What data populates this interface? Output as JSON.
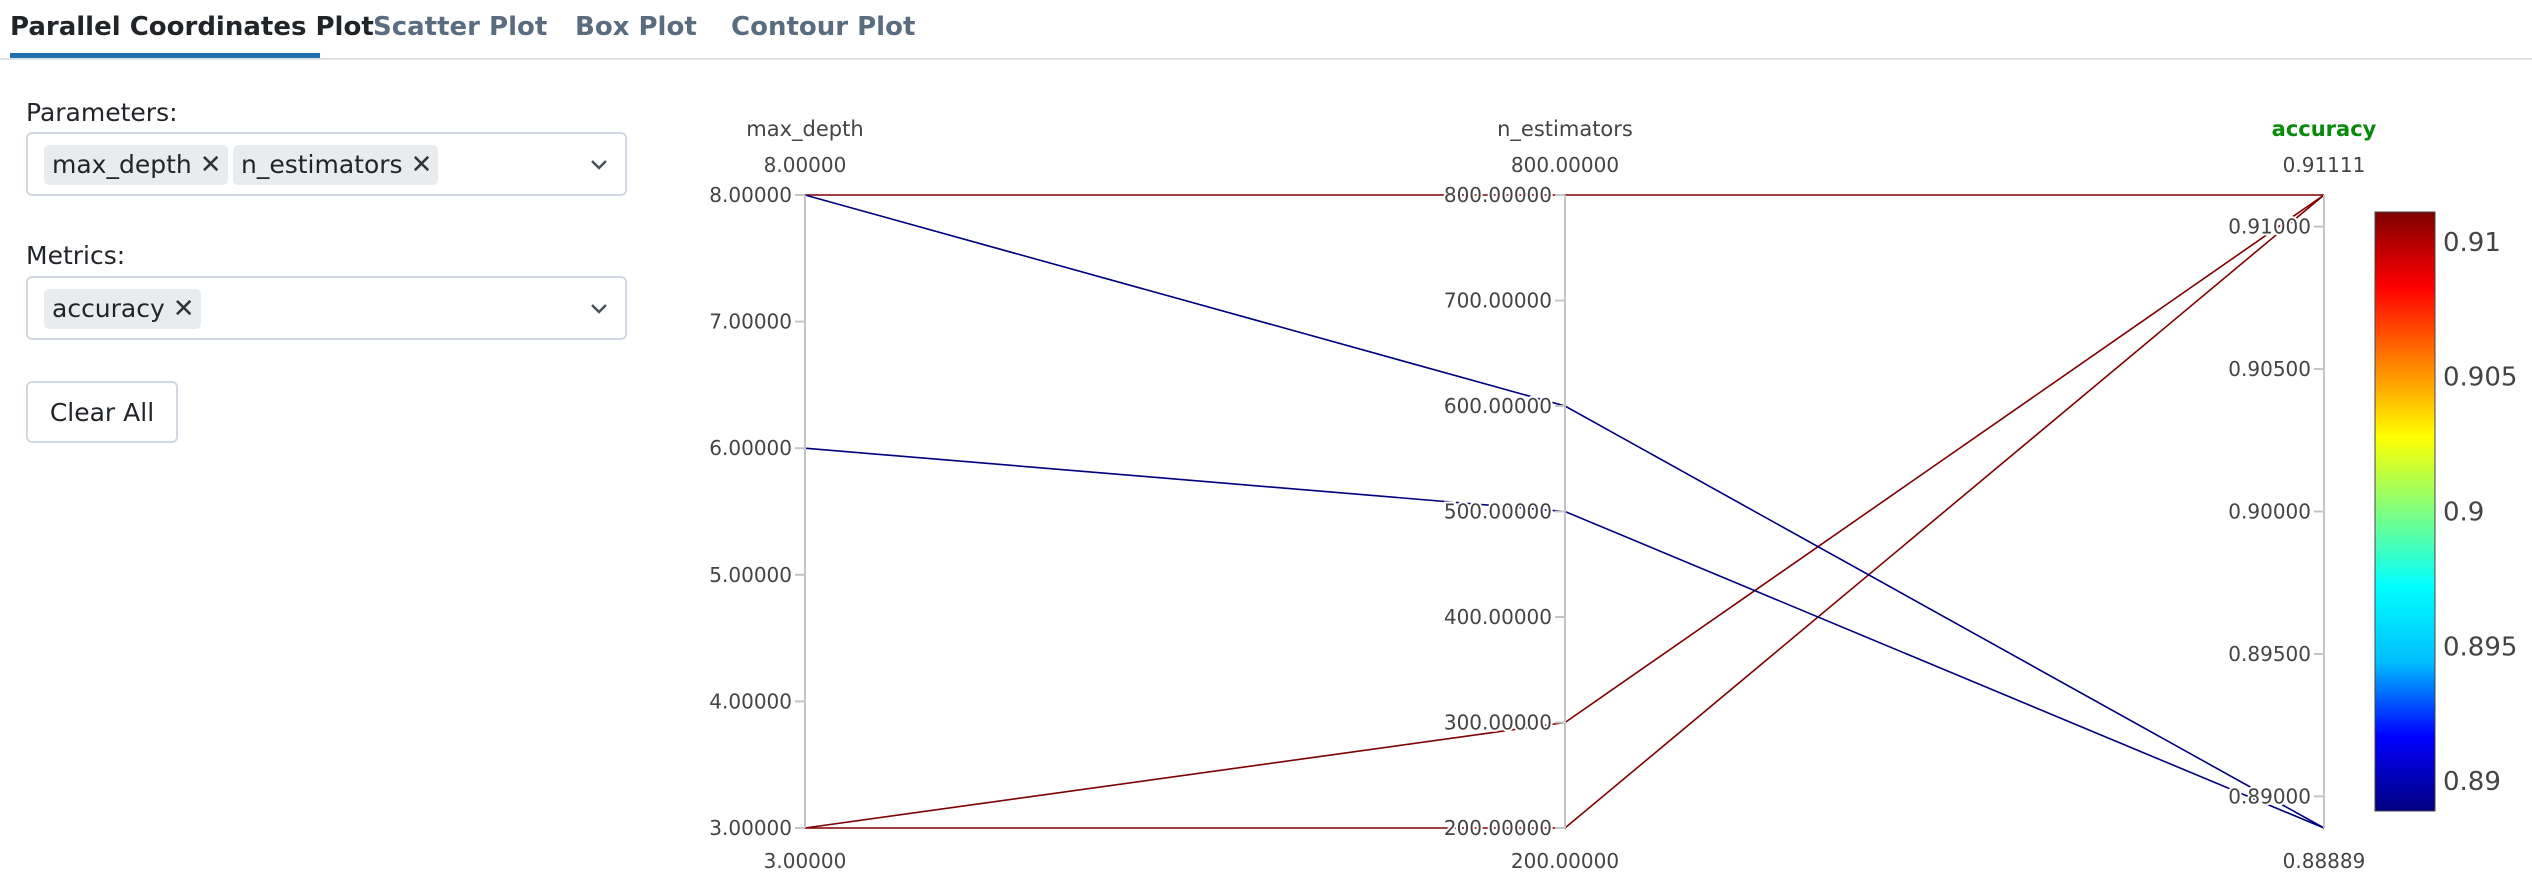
{
  "tabs": [
    {
      "label": "Parallel Coordinates Plot",
      "active": true
    },
    {
      "label": "Scatter Plot",
      "active": false
    },
    {
      "label": "Box Plot",
      "active": false
    },
    {
      "label": "Contour Plot",
      "active": false
    }
  ],
  "controls": {
    "parameters_label": "Parameters:",
    "parameters_chips": [
      "max_depth",
      "n_estimators"
    ],
    "metrics_label": "Metrics:",
    "metrics_chips": [
      "accuracy"
    ],
    "clear_all_label": "Clear All"
  },
  "colors": {
    "accent": "#1f6fb2",
    "highlight_dimension": "#0a8a0a",
    "colorscale": [
      "#00007f",
      "#0000ff",
      "#00bfff",
      "#00ffff",
      "#7fff7f",
      "#ffff00",
      "#ff7f00",
      "#ff0000",
      "#7f0000"
    ]
  },
  "chart_data": {
    "type": "parallel_coordinates",
    "dimensions": [
      {
        "label": "max_depth",
        "range": [
          3,
          8
        ],
        "top_label": "8.00000",
        "bottom_label": "3.00000",
        "ticks": [
          3,
          4,
          5,
          6,
          7,
          8
        ],
        "tick_labels": [
          "3.00000",
          "4.00000",
          "5.00000",
          "6.00000",
          "7.00000",
          "8.00000"
        ],
        "highlighted": false
      },
      {
        "label": "n_estimators",
        "range": [
          200,
          800
        ],
        "top_label": "800.00000",
        "bottom_label": "200.00000",
        "ticks": [
          200,
          300,
          400,
          500,
          600,
          700,
          800
        ],
        "tick_labels": [
          "200.00000",
          "300.00000",
          "400.00000",
          "500.00000",
          "600.00000",
          "700.00000",
          "800.00000"
        ],
        "highlighted": false
      },
      {
        "label": "accuracy",
        "range": [
          0.88889,
          0.91111
        ],
        "top_label": "0.91111",
        "bottom_label": "0.88889",
        "ticks": [
          0.89,
          0.895,
          0.9,
          0.905,
          0.91
        ],
        "tick_labels": [
          "0.89000",
          "0.89500",
          "0.90000",
          "0.90500",
          "0.91000"
        ],
        "highlighted": true
      }
    ],
    "lines": [
      {
        "values": [
          8,
          800,
          0.91111
        ]
      },
      {
        "values": [
          3,
          200,
          0.91111
        ]
      },
      {
        "values": [
          3,
          300,
          0.91111
        ]
      },
      {
        "values": [
          8,
          600,
          0.88889
        ]
      },
      {
        "values": [
          6,
          500,
          0.88889
        ]
      }
    ],
    "color_dimension": "accuracy",
    "colorbar": {
      "range": [
        0.88889,
        0.91111
      ],
      "ticks": [
        0.89,
        0.895,
        0.9,
        0.905,
        0.91
      ],
      "tick_labels": [
        "0.89",
        "0.895",
        "0.9",
        "0.905",
        "0.91"
      ]
    }
  }
}
